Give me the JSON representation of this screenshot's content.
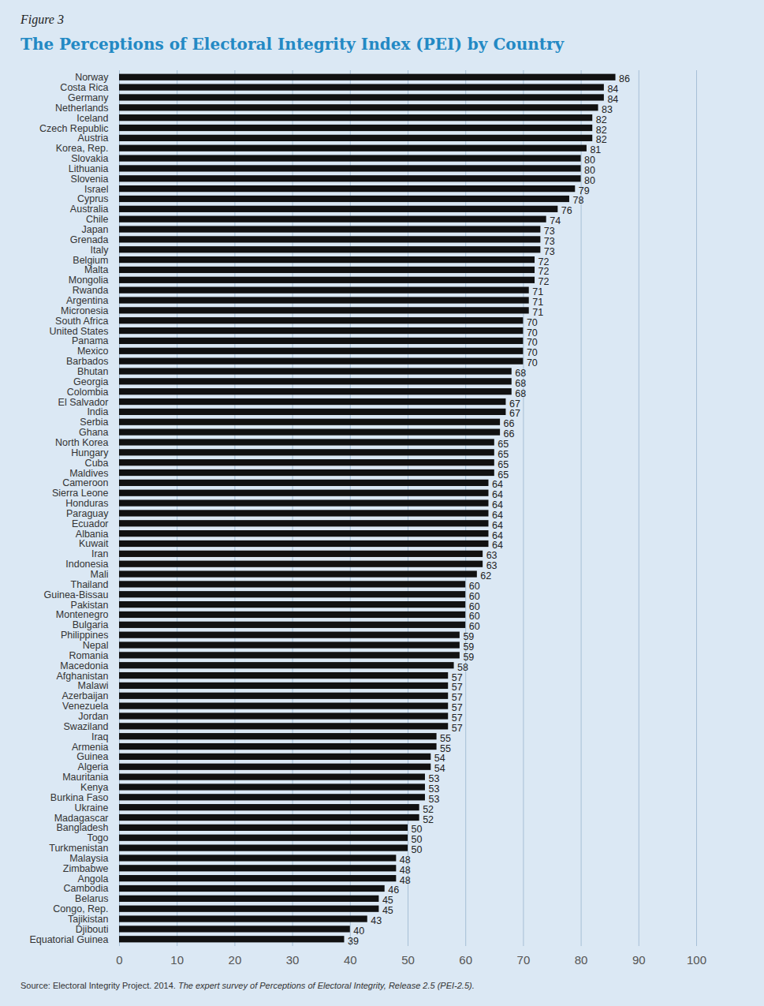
{
  "chart_data": {
    "type": "bar",
    "orientation": "horizontal",
    "figure_label": "Figure 3",
    "title": "The Perceptions of Electoral Integrity Index (PEI) by Country",
    "source": "Source: Electoral Integrity Project. 2014.",
    "source_title": "The expert survey of Perceptions of Electoral Integrity, Release 2.5 (PEI-2.5).",
    "categories": [
      "Norway",
      "Costa Rica",
      "Germany",
      "Netherlands",
      "Iceland",
      "Czech Republic",
      "Austria",
      "Korea, Rep.",
      "Slovakia",
      "Lithuania",
      "Slovenia",
      "Israel",
      "Cyprus",
      "Australia",
      "Chile",
      "Japan",
      "Grenada",
      "Italy",
      "Belgium",
      "Malta",
      "Mongolia",
      "Rwanda",
      "Argentina",
      "Micronesia",
      "South Africa",
      "United States",
      "Panama",
      "Mexico",
      "Barbados",
      "Bhutan",
      "Georgia",
      "Colombia",
      "El Salvador",
      "India",
      "Serbia",
      "Ghana",
      "North Korea",
      "Hungary",
      "Cuba",
      "Maldives",
      "Cameroon",
      "Sierra Leone",
      "Honduras",
      "Paraguay",
      "Ecuador",
      "Albania",
      "Kuwait",
      "Iran",
      "Indonesia",
      "Mali",
      "Thailand",
      "Guinea-Bissau",
      "Pakistan",
      "Montenegro",
      "Bulgaria",
      "Philippines",
      "Nepal",
      "Romania",
      "Macedonia",
      "Afghanistan",
      "Malawi",
      "Azerbaijan",
      "Venezuela",
      "Jordan",
      "Swaziland",
      "Iraq",
      "Armenia",
      "Guinea",
      "Algeria",
      "Mauritania",
      "Kenya",
      "Burkina Faso",
      "Ukraine",
      "Madagascar",
      "Bangladesh",
      "Togo",
      "Turkmenistan",
      "Malaysia",
      "Zimbabwe",
      "Angola",
      "Cambodia",
      "Belarus",
      "Congo, Rep.",
      "Tajikistan",
      "Djibouti",
      "Equatorial Guinea"
    ],
    "values": [
      86,
      84,
      84,
      83,
      82,
      82,
      82,
      81,
      80,
      80,
      80,
      79,
      78,
      76,
      74,
      73,
      73,
      73,
      72,
      72,
      72,
      71,
      71,
      71,
      70,
      70,
      70,
      70,
      70,
      68,
      68,
      68,
      67,
      67,
      66,
      66,
      65,
      65,
      65,
      65,
      64,
      64,
      64,
      64,
      64,
      64,
      64,
      63,
      63,
      62,
      60,
      60,
      60,
      60,
      60,
      59,
      59,
      59,
      58,
      57,
      57,
      57,
      57,
      57,
      57,
      55,
      55,
      54,
      54,
      53,
      53,
      53,
      52,
      52,
      50,
      50,
      50,
      48,
      48,
      48,
      46,
      45,
      45,
      43,
      40,
      39
    ],
    "color": "#111111",
    "xlim": [
      0,
      100
    ],
    "xticks": [
      0,
      10,
      20,
      30,
      40,
      50,
      60,
      70,
      80,
      90,
      100
    ],
    "grid": true,
    "data_labels": true
  }
}
